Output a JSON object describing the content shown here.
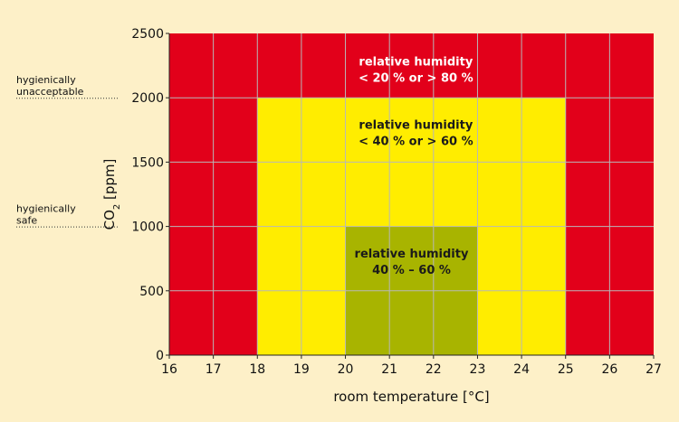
{
  "chart_data": {
    "type": "heatmap",
    "xlabel": "room temperature [°C]",
    "ylabel_main": "CO",
    "ylabel_sub": "2",
    "ylabel_rest": " [ppm]",
    "x_ticks": [
      16,
      17,
      18,
      19,
      20,
      21,
      22,
      23,
      24,
      25,
      26,
      27
    ],
    "y_ticks": [
      0,
      500,
      1000,
      1500,
      2000,
      2500
    ],
    "xlim": [
      16,
      27
    ],
    "ylim": [
      0,
      2500
    ],
    "grid": true,
    "colors": {
      "red": "#e2001a",
      "yellow": "#ffed00",
      "green": "#a8b400",
      "grid": "#b8b8b8",
      "background": "#fdf0c8"
    },
    "zones": [
      {
        "id": "red",
        "x": [
          16,
          27
        ],
        "y": [
          0,
          2500
        ],
        "color": "#e2001a",
        "label_lines": [
          "relative humidity",
          "< 20 % or > 80 %"
        ],
        "label_x": 21.6,
        "label_y": 2250,
        "text_color": "#ffffff"
      },
      {
        "id": "yellow",
        "x": [
          18,
          25
        ],
        "y": [
          0,
          2000
        ],
        "color": "#ffed00",
        "label_lines": [
          "relative humidity",
          "< 40 % or > 60 %"
        ],
        "label_x": 21.6,
        "label_y": 1760,
        "text_color": "#1a1a1a"
      },
      {
        "id": "green",
        "x": [
          20,
          23
        ],
        "y": [
          0,
          1000
        ],
        "color": "#a8b400",
        "label_lines": [
          "relative humidity",
          "40 % – 60 %"
        ],
        "label_x": 21.5,
        "label_y": 760,
        "text_color": "#1a1a1a"
      }
    ],
    "reference_lines": [
      {
        "y": 2000,
        "label_lines": [
          "hygienically",
          "unacceptable"
        ]
      },
      {
        "y": 1000,
        "label_lines": [
          "hygienically",
          "safe"
        ]
      }
    ]
  }
}
